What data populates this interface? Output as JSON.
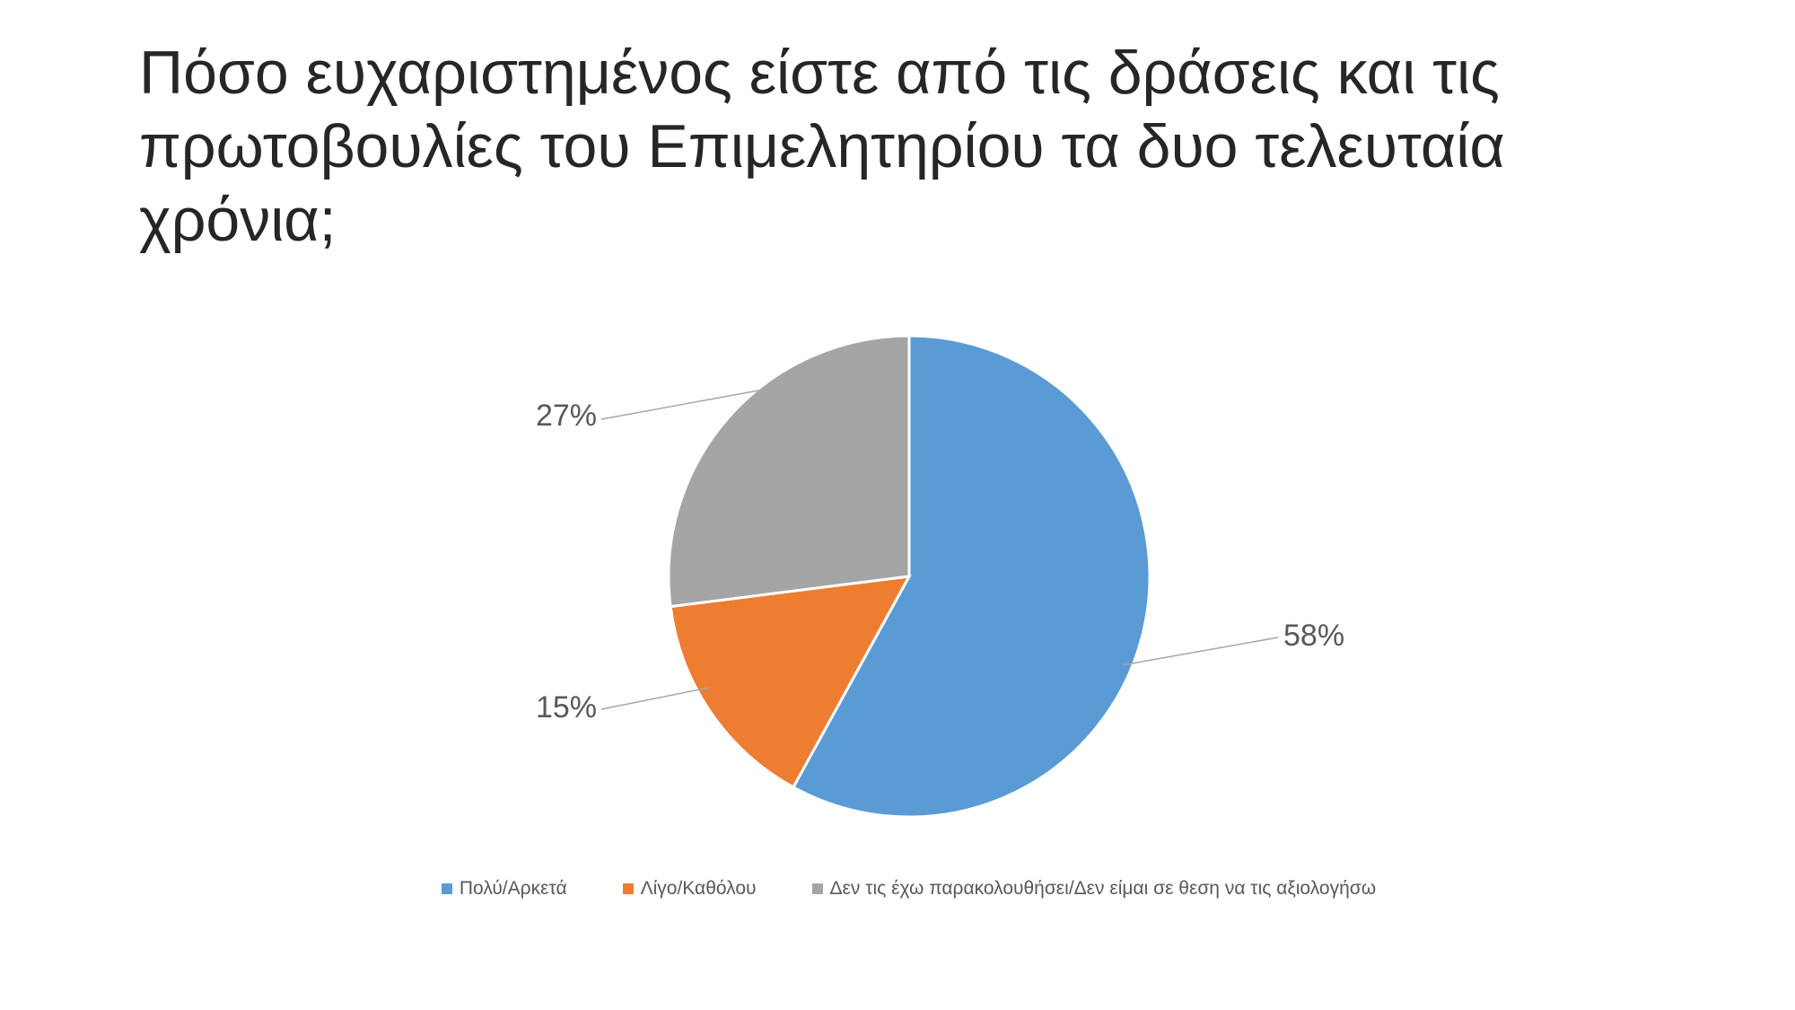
{
  "slide": {
    "title": "Πόσο ευχαριστημένος είστε από τις δράσεις και τις πρωτοβουλίες του Επιμελητηρίου τα δυο τελευταία χρόνια;"
  },
  "chart_data": {
    "type": "pie",
    "title": "",
    "categories": [
      "Πολύ/Αρκετά",
      "Λίγο/Καθόλου",
      "Δεν τις έχω παρακολουθήσει/Δεν είμαι σε θεση να τις αξιολογήσω"
    ],
    "values": [
      58,
      15,
      27
    ],
    "data_labels": [
      "58%",
      "15%",
      "27%"
    ],
    "colors": [
      "#5B9BD5",
      "#ED7D31",
      "#A5A5A5"
    ],
    "start_angle_deg": 0,
    "direction": "clockwise",
    "legend_position": "bottom",
    "label_color": "#595959",
    "leader_line_color": "#A6A6A6"
  }
}
